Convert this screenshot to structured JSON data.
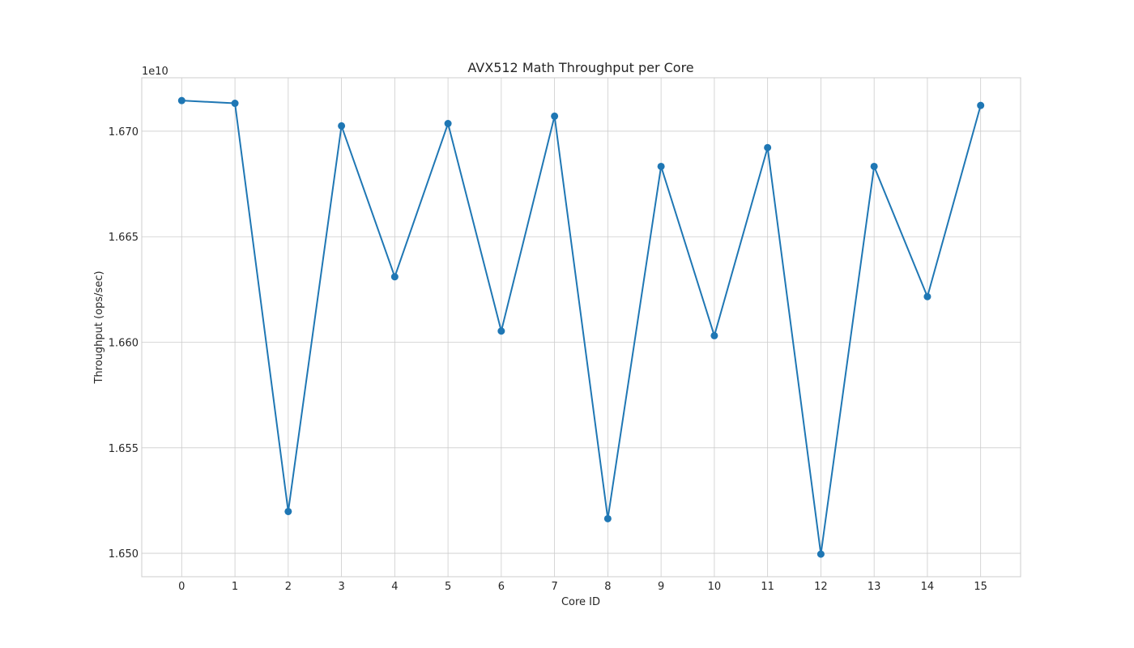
{
  "chart_data": {
    "type": "line",
    "title": "AVX512 Math Throughput per Core",
    "xlabel": "Core ID",
    "ylabel": "Throughput (ops/sec)",
    "y_offset_text": "1e10",
    "x": [
      0,
      1,
      2,
      3,
      4,
      5,
      6,
      7,
      8,
      9,
      10,
      11,
      12,
      13,
      14,
      15
    ],
    "x_tick_labels": [
      "0",
      "1",
      "2",
      "3",
      "4",
      "5",
      "6",
      "7",
      "8",
      "9",
      "10",
      "11",
      "12",
      "13",
      "14",
      "15"
    ],
    "y_tick_values": [
      16500000000,
      16550000000,
      16600000000,
      16650000000,
      16700000000
    ],
    "y_tick_labels": [
      "1.650",
      "1.655",
      "1.660",
      "1.665",
      "1.670"
    ],
    "xlim": [
      -0.75,
      15.75
    ],
    "ylim": [
      16488900000,
      16725300000
    ],
    "grid": true,
    "series": [
      {
        "color": "#1f77b4",
        "values": [
          16714500000,
          16713200000,
          16519800000,
          16702500000,
          16631000000,
          16703600000,
          16605300000,
          16707100000,
          16516400000,
          16683300000,
          16603100000,
          16692200000,
          16499600000,
          16683300000,
          16621600000,
          16712200000
        ]
      }
    ]
  }
}
